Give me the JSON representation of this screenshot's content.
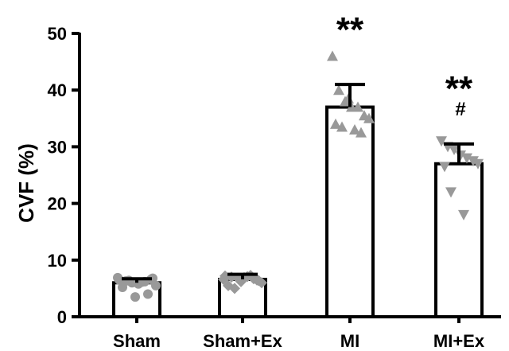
{
  "chart_data": {
    "type": "bar",
    "ylabel": "CVF (%)",
    "xlabel": "",
    "ylim": [
      0,
      50
    ],
    "yticks": [
      0,
      10,
      20,
      30,
      40,
      50
    ],
    "categories": [
      "Sham",
      "Sham+Ex",
      "MI",
      "MI+Ex"
    ],
    "values": [
      6.0,
      6.6,
      37.0,
      27.0
    ],
    "error_upper": [
      6.7,
      7.5,
      41.0,
      30.5
    ],
    "annotations": [
      "",
      "",
      "**",
      "**\n#"
    ],
    "points": [
      {
        "shape": "circle",
        "values": [
          6.5,
          6.3,
          6.0,
          5.8,
          6.2,
          6.6,
          5.5,
          5.2,
          6.4,
          6.1,
          4.0,
          3.5,
          6.8,
          6.9
        ]
      },
      {
        "shape": "diamond",
        "values": [
          7.2,
          7.0,
          6.8,
          6.9,
          7.3,
          6.5,
          6.0,
          5.5,
          5.0,
          7.1,
          6.7,
          6.2,
          6.4,
          6.6
        ]
      },
      {
        "shape": "triangle-up",
        "values": [
          46.0,
          40.0,
          38.0,
          37.0,
          37.0,
          35.5,
          35.0,
          34.0,
          33.5,
          33.0,
          32.5,
          38.5
        ]
      },
      {
        "shape": "triangle-down",
        "values": [
          31.0,
          30.0,
          29.5,
          28.5,
          28.0,
          27.5,
          27.0,
          26.5,
          22.0,
          18.0
        ]
      }
    ],
    "colors": {
      "bar_fill": "#ffffff",
      "bar_stroke": "#000000",
      "point": "#999999",
      "error": "#000000"
    },
    "grid": false,
    "legend": "none"
  }
}
